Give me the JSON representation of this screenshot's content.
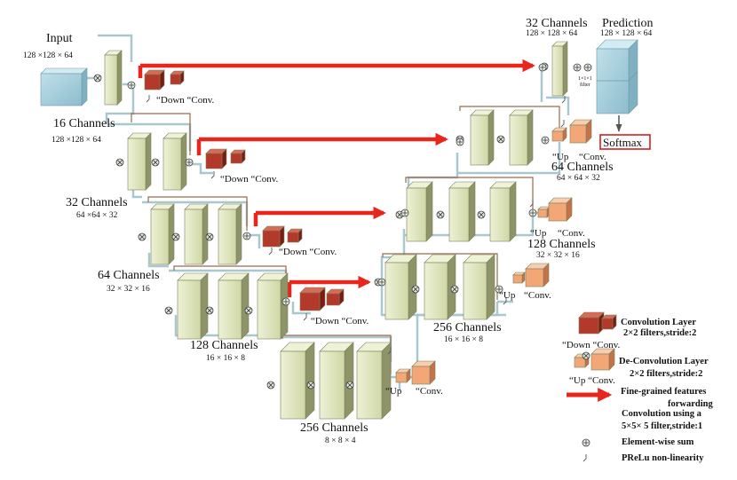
{
  "labels": {
    "input_title": "Input",
    "input_dims": "128 ×128 × 64",
    "enc1_title": "16 Channels",
    "enc1_dims": "128 ×128 × 64",
    "enc2_title": "32 Channels",
    "enc2_dims": "64 ×64 × 32",
    "enc3_title": "64 Channels",
    "enc3_dims": "32 × 32 × 16",
    "enc4_title": "128 Channels",
    "enc4_dims": "16 × 16 × 8",
    "bottom_title": "256 Channels",
    "bottom_dims": "8 × 8 × 4",
    "dec4_title": "256 Channels",
    "dec4_dims": "16 × 16 × 8",
    "dec3_title": "128 Channels",
    "dec3_dims": "32 × 32 × 16",
    "dec2_title": "64 Channels",
    "dec2_dims": "64 × 64 × 32",
    "dec1_title": "32 Channels",
    "dec1_dims": "128 × 128 × 64",
    "pred_title": "Prediction",
    "pred_dims": "128 × 128 × 64",
    "softmax": "Softmax",
    "onexone": "1×1×1",
    "filter": "filter",
    "down_conv": "“Down  “Conv.",
    "up_word": "“Up",
    "conv_word": "“Conv."
  },
  "legend": {
    "conv_layer": "Convolution Layer",
    "conv_layer_sub": "2×2 filters,stride:2",
    "deconv_layer": "De-Convolution Layer",
    "deconv_layer_sub": "2×2 filters,stride:2",
    "down_conv": "“Down  “Conv.",
    "up_conv": "“Up   “Conv.",
    "forwarding": "Fine-grained features",
    "forwarding_2": "forwarding",
    "conv5": "Convolution using a",
    "conv5_sub": "5×5× 5 filter,stride:1",
    "sum": "Element-wise sum",
    "prelu": "PReLu non-linearity"
  },
  "colors": {
    "input_block": "#a6cfdc",
    "feature_block": "#e2e7c4",
    "conv_block": "#b33a2a",
    "deconv_block": "#f3a776",
    "forward_arrow": "#e8261c",
    "connector": "#a9c7cf",
    "softmax_border": "#cc2222"
  }
}
